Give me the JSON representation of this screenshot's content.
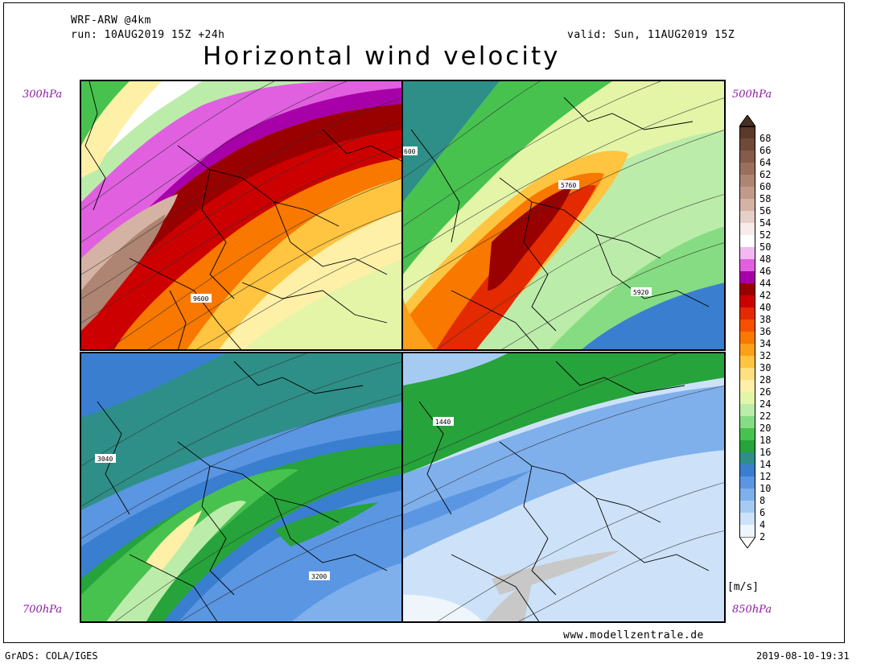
{
  "header": {
    "model": "WRF-ARW @4km",
    "run": "run: 10AUG2019 15Z +24h",
    "valid": "valid: Sun, 11AUG2019 15Z",
    "title": "Horizontal wind velocity"
  },
  "levels": {
    "top_left": "300hPa",
    "top_right": "500hPa",
    "bottom_left": "700hPa",
    "bottom_right": "850hPa"
  },
  "contour_labels": {
    "p300": "9600",
    "p500_a": "5760",
    "p500_b": "5920",
    "p500_c": "600",
    "p700_a": "3040",
    "p700_b": "3200",
    "p850_a": "1440"
  },
  "colorbar": {
    "unit": "[m/s]",
    "labels": [
      "68",
      "66",
      "64",
      "62",
      "60",
      "58",
      "56",
      "54",
      "52",
      "50",
      "48",
      "46",
      "44",
      "42",
      "40",
      "38",
      "36",
      "34",
      "32",
      "30",
      "28",
      "26",
      "24",
      "22",
      "20",
      "18",
      "16",
      "14",
      "12",
      "10",
      "8",
      "6",
      "4",
      "2"
    ],
    "colors": [
      "#5a3a2a",
      "#6f4a38",
      "#855c48",
      "#9a705c",
      "#ae8472",
      "#c29a8a",
      "#d4b2a4",
      "#e6cfc6",
      "#f6ecea",
      "#ffffff",
      "#f2b8f2",
      "#e060e0",
      "#a800a8",
      "#990000",
      "#cc0000",
      "#e42a00",
      "#f45000",
      "#f87800",
      "#fc9f1a",
      "#ffc440",
      "#ffe080",
      "#fff0a8",
      "#e4f5a8",
      "#bcecaa",
      "#86dc82",
      "#48c24e",
      "#26a33a",
      "#2e8f88",
      "#3a7ed0",
      "#5b96e2",
      "#7fb0ec",
      "#a6cbf2",
      "#cde2f8",
      "#eef6fc"
    ]
  },
  "footer": {
    "site": "www.modellzentrale.de",
    "grads": "GrADS: COLA/IGES",
    "timestamp": "2019-08-10-19:31"
  }
}
